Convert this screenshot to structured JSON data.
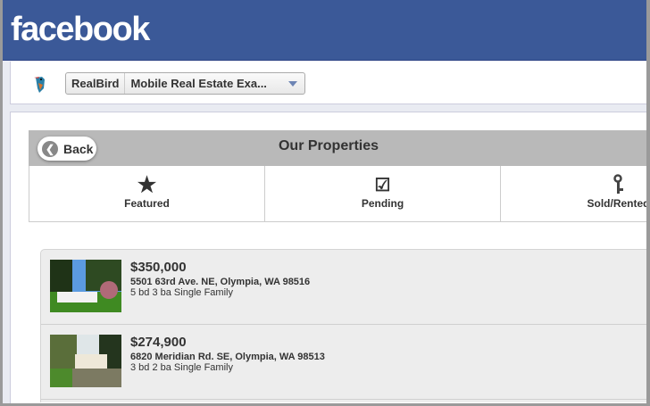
{
  "facebook": {
    "logo": "facebook",
    "brand_color": "#3b5998"
  },
  "app": {
    "name": "RealBird",
    "page": "Mobile Real Estate Exa...",
    "icon": "kingfisher-bird-icon"
  },
  "header": {
    "back_label": "Back",
    "title": "Our Properties"
  },
  "tabs": [
    {
      "label": "Featured",
      "icon": "star-icon"
    },
    {
      "label": "Pending",
      "icon": "checkbox-icon"
    },
    {
      "label": "Sold/Rented",
      "icon": "key-icon"
    }
  ],
  "listings": [
    {
      "price": "$350,000",
      "address": "5501 63rd Ave. NE, Olympia, WA 98516",
      "details": "5 bd 3 ba Single Family"
    },
    {
      "price": "$274,900",
      "address": "6820 Meridian Rd. SE, Olympia, WA 98513",
      "details": "3 bd 2 ba Single Family"
    }
  ]
}
